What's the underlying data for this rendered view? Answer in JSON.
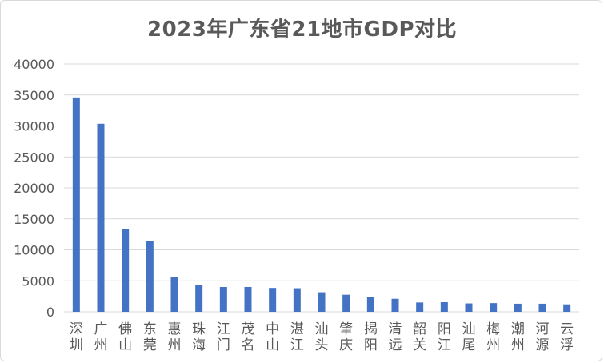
{
  "chart_data": {
    "type": "bar",
    "title": "2023年广东省21地市GDP对比",
    "xlabel": "",
    "ylabel": "",
    "ylim": [
      0,
      40000
    ],
    "yticks": [
      0,
      5000,
      10000,
      15000,
      20000,
      25000,
      30000,
      35000,
      40000
    ],
    "ytick_labels": [
      "0",
      "5000",
      "10000",
      "15000",
      "20000",
      "25000",
      "30000",
      "35000",
      "40000"
    ],
    "grid": true,
    "legend": "none",
    "bar_color": "#4472C4",
    "grid_color": "#d9d9d9",
    "categories": [
      "深圳",
      "广州",
      "佛山",
      "东莞",
      "惠州",
      "珠海",
      "江门",
      "茂名",
      "中山",
      "湛江",
      "汕头",
      "肇庆",
      "揭阳",
      "清远",
      "韶关",
      "阳江",
      "汕尾",
      "梅州",
      "潮州",
      "河源",
      "云浮"
    ],
    "values": [
      34600,
      30350,
      13300,
      11400,
      5600,
      4300,
      4000,
      4000,
      3850,
      3800,
      3150,
      2750,
      2450,
      2100,
      1500,
      1550,
      1350,
      1400,
      1300,
      1300,
      1200
    ]
  }
}
